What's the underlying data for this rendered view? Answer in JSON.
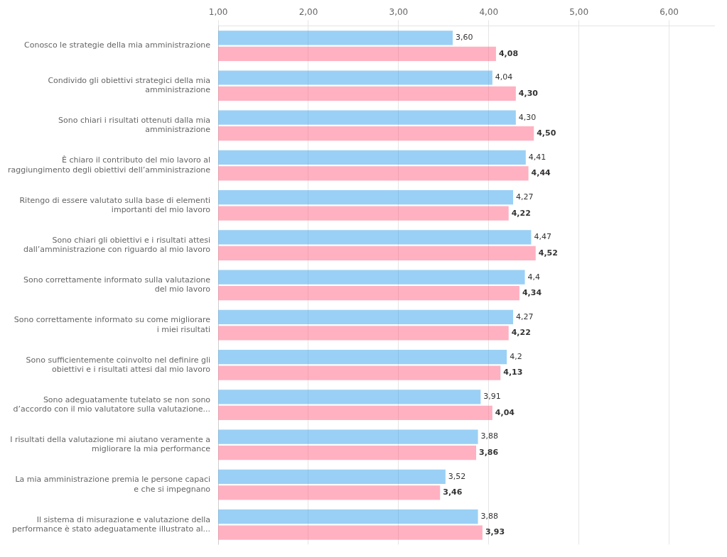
{
  "chart_data": {
    "type": "bar",
    "orientation": "horizontal",
    "categories": [
      "Conosco le strategie della mia amministrazione",
      "Condivido gli obiettivi strategici della mia\namministrazione",
      "Sono chiari i risultati ottenuti dalla mia\namministrazione",
      "È chiaro il contributo del mio lavoro al\nraggiungimento degli obiettivi dell’amministrazione",
      "Ritengo di essere valutato sulla base di elementi\nimportanti del mio lavoro",
      "Sono chiari gli obiettivi e i risultati attesi\ndall’amministrazione con riguardo al mio lavoro",
      "Sono correttamente informato sulla valutazione\ndel mio lavoro",
      "Sono correttamente informato su come migliorare\ni miei risultati",
      "Sono sufficientemente coinvolto nel definire gli\nobiettivi e i risultati attesi dal mio lavoro",
      "Sono adeguatamente tutelato se non sono\nd’accordo con il mio valutatore sulla valutazione...",
      "I risultati della valutazione mi aiutano veramente a\nmigliorare la mia performance",
      "La mia amministrazione premia le persone capaci\ne che si impegnano",
      "Il sistema di misurazione e valutazione della\nperformance è stato adeguatamente illustrato al..."
    ],
    "series": [
      {
        "values": [
          3.6,
          4.04,
          4.3,
          4.41,
          4.27,
          4.47,
          4.4,
          4.27,
          4.2,
          3.91,
          3.88,
          3.52,
          3.88
        ],
        "value_labels": [
          "3,60",
          "4,04",
          "4,30",
          "4,41",
          "4,27",
          "4,47",
          "4,4",
          "4,27",
          "4,2",
          "3,91",
          "3,88",
          "3,52",
          "3,88"
        ]
      },
      {
        "values": [
          4.08,
          4.3,
          4.5,
          4.44,
          4.22,
          4.52,
          4.34,
          4.22,
          4.13,
          4.04,
          3.86,
          3.46,
          3.93
        ],
        "value_labels": [
          "4,08",
          "4,30",
          "4,50",
          "4,44",
          "4,22",
          "4,52",
          "4,34",
          "4,22",
          "4,13",
          "4,04",
          "3,86",
          "3,46",
          "3,93"
        ]
      }
    ],
    "xlim": [
      1.0,
      6.5
    ],
    "xticks": [
      {
        "value": 1.0,
        "label": "1,00"
      },
      {
        "value": 2.0,
        "label": "2,00"
      },
      {
        "value": 3.0,
        "label": "3,00"
      },
      {
        "value": 4.0,
        "label": "4,00"
      },
      {
        "value": 5.0,
        "label": "5,00"
      },
      {
        "value": 6.0,
        "label": "6,00"
      }
    ],
    "grid": true,
    "data_labels": true
  }
}
